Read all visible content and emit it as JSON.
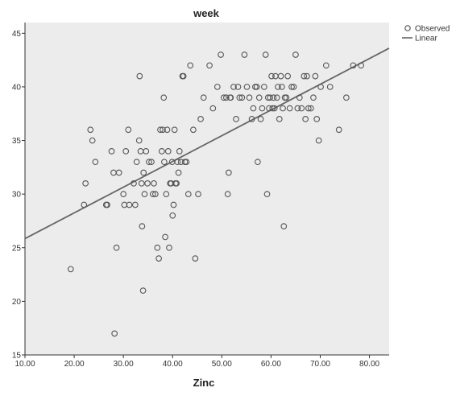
{
  "chart_data": {
    "type": "scatter",
    "title": "week",
    "xlabel": "Zinc",
    "ylabel": "",
    "xlim": [
      10,
      84
    ],
    "ylim": [
      15,
      46
    ],
    "grid": false,
    "legend_position": "top-right",
    "x_ticks": [
      10,
      20,
      30,
      40,
      50,
      60,
      70,
      80
    ],
    "y_ticks": [
      15,
      20,
      25,
      30,
      35,
      40,
      45
    ],
    "x_tick_labels": [
      "10.00",
      "20.00",
      "30.00",
      "40.00",
      "50.00",
      "60.00",
      "70.00",
      "80.00"
    ],
    "y_tick_labels": [
      "15",
      "20",
      "25",
      "30",
      "35",
      "40",
      "45"
    ],
    "legend": [
      {
        "label": "Observed",
        "symbol": "circle"
      },
      {
        "label": "Linear",
        "symbol": "line"
      }
    ],
    "colors": {
      "plot_background": "#ececec",
      "marker": "#555555",
      "fit_line": "#666666",
      "axis": "#333333"
    },
    "series": [
      {
        "kind": "points",
        "x": [
          19.3,
          22,
          22.3,
          23.3,
          23.7,
          24.3,
          26.5,
          26.7,
          27.6,
          28,
          28.2,
          28.6,
          29.1,
          30,
          30.2,
          30.5,
          31,
          31.2,
          32.1,
          32.4,
          32.7,
          33.2,
          33.3,
          33.5,
          33.7,
          33.8,
          34,
          34.1,
          34.3,
          34.6,
          34.9,
          35.2,
          35.7,
          36,
          36.2,
          36.5,
          36.9,
          37.2,
          37.5,
          37.8,
          38,
          38.2,
          38.3,
          38.5,
          38.7,
          38.9,
          39.1,
          39.3,
          39.5,
          39.7,
          39.9,
          40,
          40.2,
          40.4,
          40.6,
          40.8,
          41,
          41.2,
          41.4,
          41.7,
          42,
          42.2,
          42.5,
          42.8,
          43.2,
          43.6,
          44.2,
          44.6,
          45.2,
          45.7,
          46.3,
          47.5,
          48.2,
          49.1,
          49.8,
          50.4,
          50.9,
          51.2,
          51.4,
          51.7,
          51.8,
          52.4,
          52.9,
          53.3,
          53.6,
          54.1,
          54.6,
          55.1,
          55.6,
          56.1,
          56.4,
          56.8,
          57.1,
          57.3,
          57.6,
          57.9,
          58.2,
          58.6,
          58.9,
          59.2,
          59.4,
          59.6,
          59.8,
          60.1,
          60.3,
          60.5,
          60.7,
          60.9,
          61.2,
          61.4,
          61.7,
          62,
          62.2,
          62.4,
          62.6,
          62.8,
          63.1,
          63.4,
          63.8,
          64.2,
          64.6,
          65,
          65.4,
          65.8,
          66.2,
          66.7,
          67,
          67.3,
          67.6,
          68.1,
          68.6,
          69,
          69.3,
          69.7,
          70.1,
          71.2,
          72,
          73.8,
          75.3,
          76.7,
          78.3
        ],
        "y": [
          23,
          29,
          31,
          36,
          35,
          33,
          29,
          29,
          34,
          32,
          17,
          25,
          32,
          30,
          29,
          34,
          36,
          29,
          31,
          29,
          33,
          35,
          41,
          34,
          31,
          27,
          21,
          32,
          30,
          34,
          31,
          33,
          33,
          30,
          31,
          30,
          25,
          24,
          36,
          34,
          36,
          39,
          33,
          26,
          30,
          36,
          34,
          25,
          31,
          31,
          33,
          28,
          29,
          36,
          31,
          31,
          33,
          32,
          34,
          33,
          41,
          41,
          33,
          33,
          30,
          42,
          36,
          24,
          30,
          37,
          39,
          42,
          38,
          40,
          43,
          39,
          39,
          30,
          32,
          39,
          39,
          40,
          37,
          40,
          39,
          39,
          43,
          40,
          39,
          37,
          38,
          40,
          40,
          33,
          39,
          37,
          38,
          40,
          43,
          30,
          39,
          38,
          39,
          41,
          38,
          39,
          38,
          41,
          39,
          40,
          37,
          41,
          40,
          38,
          27,
          39,
          39,
          41,
          38,
          40,
          40,
          43,
          38,
          39,
          38,
          41,
          37,
          41,
          38,
          38,
          39,
          41,
          37,
          35,
          40,
          42,
          40,
          36,
          39,
          42,
          42
        ]
      },
      {
        "kind": "fit",
        "name": "Linear",
        "x": [
          10,
          84
        ],
        "y": [
          25.85,
          43.6
        ]
      }
    ]
  }
}
